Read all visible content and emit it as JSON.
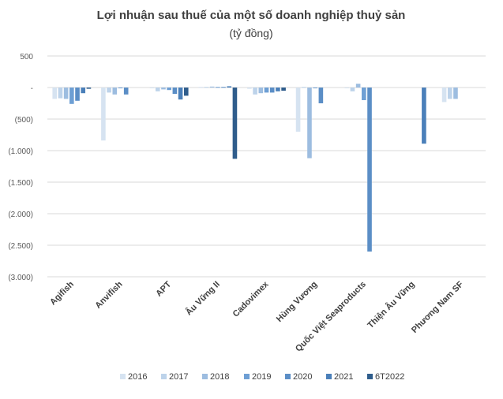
{
  "chart_data": {
    "type": "bar",
    "title": "Lợi nhuận sau thuế của một số doanh nghiệp thuỷ sản",
    "subtitle": "(tỷ đồng)",
    "categories": [
      "Agifish",
      "Anvifish",
      "APT",
      "Âu Vững II",
      "Cadovimex",
      "Hùng Vương",
      "Quốc Việt Seaproducts",
      "Thiện Âu Vững",
      "Phương Nam SF"
    ],
    "ylim": [
      -3000,
      500
    ],
    "yticks": [
      {
        "value": 500,
        "label": "500"
      },
      {
        "value": 0,
        "label": "-"
      },
      {
        "value": -500,
        "label": "(500)"
      },
      {
        "value": -1000,
        "label": "(1.000)"
      },
      {
        "value": -1500,
        "label": "(1.500)"
      },
      {
        "value": -2000,
        "label": "(2.000)"
      },
      {
        "value": -2500,
        "label": "(2.500)"
      },
      {
        "value": -3000,
        "label": "(3.000)"
      }
    ],
    "grid": true,
    "legend_position": "bottom",
    "series": [
      {
        "name": "2016",
        "color": "#d6e3f1",
        "values": [
          -180,
          -840,
          -10,
          10,
          -20,
          -700,
          -10,
          0,
          -230
        ]
      },
      {
        "name": "2017",
        "color": "#bdd3ea",
        "values": [
          -170,
          -80,
          -60,
          10,
          -110,
          10,
          -60,
          0,
          -180
        ]
      },
      {
        "name": "2018",
        "color": "#9dbde0",
        "values": [
          -180,
          -110,
          -30,
          15,
          -90,
          -1120,
          60,
          0,
          -180
        ]
      },
      {
        "name": "2019",
        "color": "#6e9fd4",
        "values": [
          -260,
          -10,
          -40,
          10,
          -80,
          -10,
          -200,
          0,
          0
        ]
      },
      {
        "name": "2020",
        "color": "#5b8ec6",
        "values": [
          -210,
          -110,
          -100,
          10,
          -80,
          -250,
          -2600,
          0,
          0
        ]
      },
      {
        "name": "2021",
        "color": "#4a7fb9",
        "values": [
          -90,
          0,
          -190,
          20,
          -60,
          0,
          0,
          -890,
          0
        ]
      },
      {
        "name": "6T2022",
        "color": "#2f5d8c",
        "values": [
          -20,
          0,
          -130,
          -1130,
          -50,
          0,
          0,
          0,
          0
        ]
      }
    ]
  }
}
